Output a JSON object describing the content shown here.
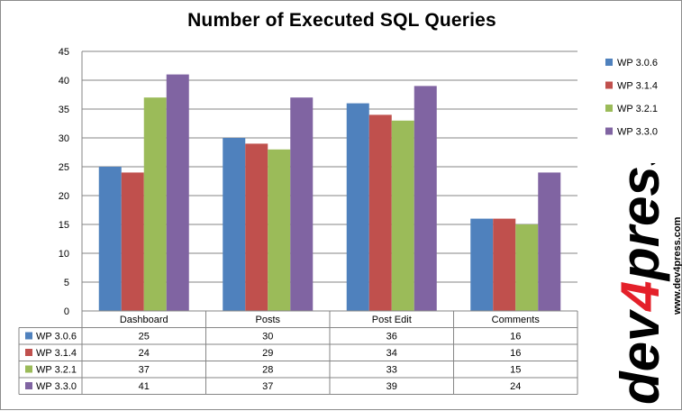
{
  "chart_data": {
    "type": "bar",
    "title": "Number of Executed SQL Queries",
    "categories": [
      "Dashboard",
      "Posts",
      "Post Edit",
      "Comments"
    ],
    "series": [
      {
        "name": "WP 3.0.6",
        "values": [
          25,
          30,
          36,
          16
        ],
        "color": "#4f81bd"
      },
      {
        "name": "WP 3.1.4",
        "values": [
          24,
          29,
          34,
          16
        ],
        "color": "#c0504d"
      },
      {
        "name": "WP 3.2.1",
        "values": [
          37,
          28,
          33,
          15
        ],
        "color": "#9bbb59"
      },
      {
        "name": "WP 3.3.0",
        "values": [
          41,
          37,
          39,
          24
        ],
        "color": "#8064a2"
      }
    ],
    "ylim": [
      0,
      45
    ],
    "yticks": [
      0,
      5,
      10,
      15,
      20,
      25,
      30,
      35,
      40,
      45
    ],
    "grid": true,
    "legend": "right",
    "data_table": true
  },
  "watermark": {
    "logo_text": "dev4press",
    "url_text": "www.dev4press.com",
    "accent": "#e4202a"
  }
}
